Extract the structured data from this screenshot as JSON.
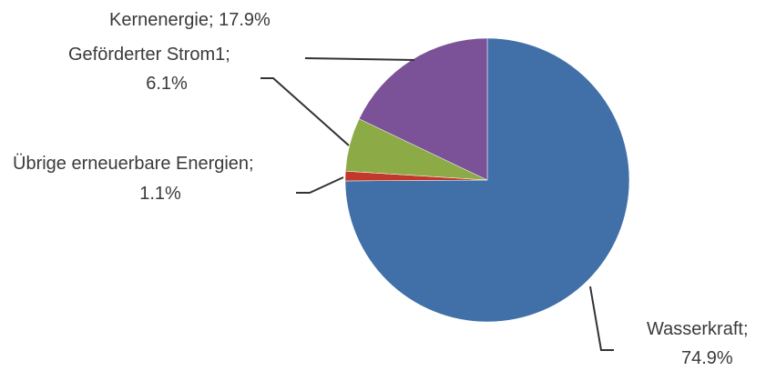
{
  "chart_data": {
    "type": "pie",
    "slices": [
      {
        "label": "Wasserkraft",
        "value": 74.9,
        "value_text": "74.9%",
        "color": "#4170a8"
      },
      {
        "label": "Übrige erneuerbare Energien",
        "value": 1.1,
        "value_text": "1.1%",
        "color": "#c0392b"
      },
      {
        "label": "Geförderter Strom1",
        "value": 6.1,
        "value_text": "6.1%",
        "color": "#8cab46"
      },
      {
        "label": "Kernenergie",
        "value": 17.9,
        "value_text": "17.9%",
        "color": "#7b5298"
      }
    ],
    "labels": {
      "kernenergie": {
        "line1": "Kernenergie;  17.9%"
      },
      "gefoerderter": {
        "line1": "Geförderter Strom1;",
        "line2": "6.1%"
      },
      "uebrige": {
        "line1": "Übrige erneuerbare Energien;",
        "line2": "1.1%"
      },
      "wasserkraft": {
        "line1": "Wasserkraft;",
        "line2": "74.9%"
      }
    },
    "start_angle_deg": 0,
    "direction": "clockwise",
    "legend": "none"
  }
}
